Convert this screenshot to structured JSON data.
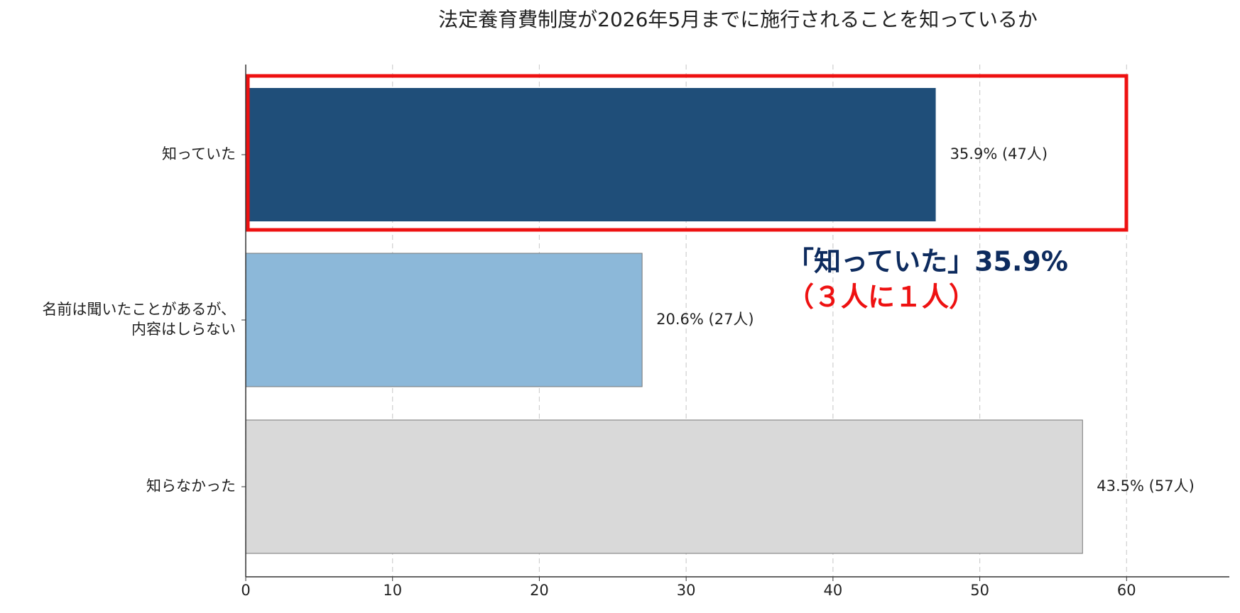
{
  "chart_data": {
    "type": "barh",
    "title": "法定養育費制度が2026年5月までに施行されることを知っているか",
    "categories": [
      "知っていた",
      "名前は聞いたことがあるが、\n内容はしらない",
      "知らなかった"
    ],
    "values": [
      47,
      27,
      57
    ],
    "value_labels": [
      "35.9% (47人)",
      "20.6% (27人)",
      "43.5% (57人)"
    ],
    "colors": [
      "#1f4e79",
      "#8cb8d9",
      "#d9d9d9"
    ],
    "xlim": [
      0,
      67
    ],
    "xticks": [
      0,
      10,
      20,
      30,
      40,
      50,
      60
    ],
    "grid": true,
    "annotations": [
      "「知っていた」35.9%",
      "（３人に１人）"
    ]
  }
}
